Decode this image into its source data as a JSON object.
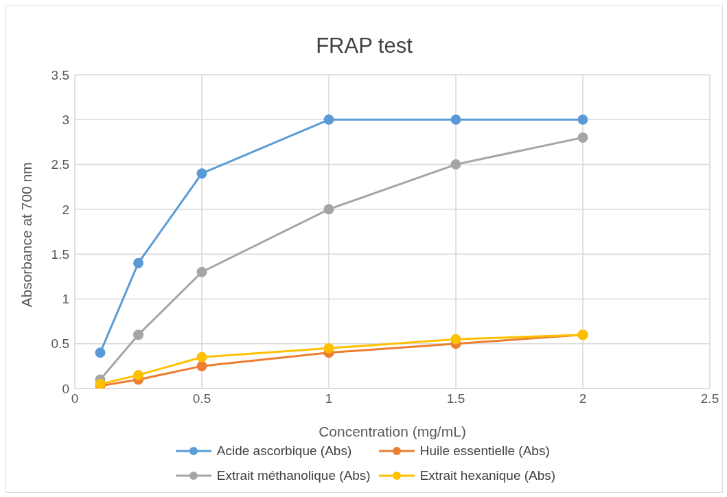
{
  "chart_data": {
    "type": "line",
    "title": "FRAP test",
    "xlabel": "Concentration (mg/mL)",
    "ylabel": "Absorbance at 700 nm",
    "x": [
      0.1,
      0.25,
      0.5,
      1,
      1.5,
      2
    ],
    "series": [
      {
        "name": "Acide ascorbique (Abs)",
        "color": "#5b9bd5",
        "values": [
          0.4,
          1.4,
          2.4,
          3,
          3,
          3
        ]
      },
      {
        "name": "Huile essentielle (Abs)",
        "color": "#ed7d31",
        "values": [
          0.03,
          0.1,
          0.25,
          0.4,
          0.5,
          0.6
        ]
      },
      {
        "name": "Extrait méthanolique (Abs)",
        "color": "#a5a5a5",
        "values": [
          0.1,
          0.6,
          1.3,
          2,
          2.5,
          2.8
        ]
      },
      {
        "name": "Extrait hexanique (Abs)",
        "color": "#ffc000",
        "values": [
          0.05,
          0.15,
          0.35,
          0.45,
          0.55,
          0.6
        ]
      }
    ],
    "xlim": [
      0,
      2.5
    ],
    "xticks": [
      0,
      0.5,
      1,
      1.5,
      2,
      2.5
    ],
    "ylim": [
      0,
      3.5
    ],
    "yticks": [
      0,
      0.5,
      1,
      1.5,
      2,
      2.5,
      3,
      3.5
    ],
    "grid": true,
    "legend": "bottom",
    "marker": "circle",
    "line_style": "solid"
  }
}
